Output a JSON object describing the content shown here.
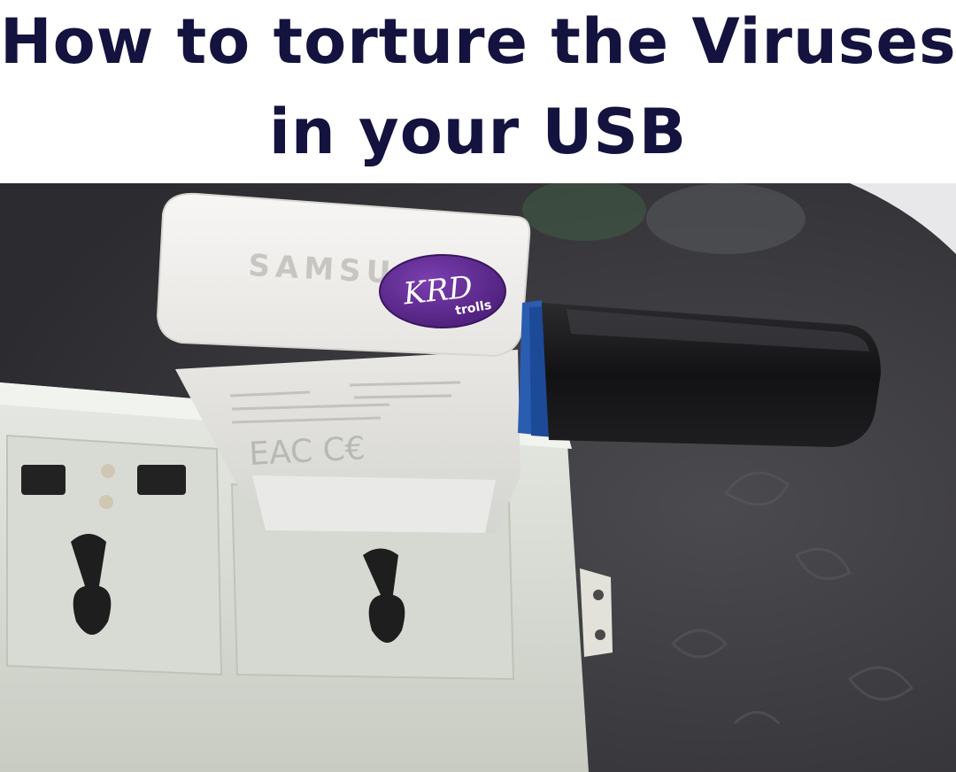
{
  "caption": {
    "line1": "How to torture the Viruses",
    "line2": "in your USB"
  },
  "photo": {
    "charger_brand": "SAMSU",
    "charger_marks": "EAC C€",
    "watermark": {
      "main": "KRD",
      "sub": "trolls"
    }
  },
  "colors": {
    "caption_text": "#14123f",
    "watermark_fill": "#5b2a8c",
    "usb_blue": "#2a5db0"
  }
}
